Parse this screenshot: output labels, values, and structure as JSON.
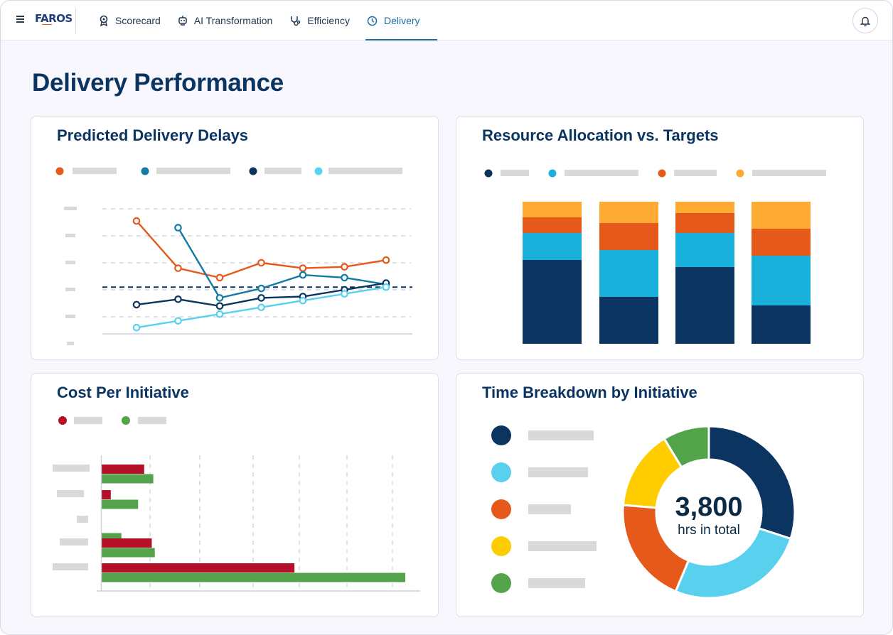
{
  "brand": {
    "name": "FAROS"
  },
  "nav": {
    "items": [
      {
        "label": "Scorecard",
        "icon": "award-icon",
        "active": false
      },
      {
        "label": "AI Transformation",
        "icon": "robot-icon",
        "active": false
      },
      {
        "label": "Efficiency",
        "icon": "stethoscope-icon",
        "active": false
      },
      {
        "label": "Delivery",
        "icon": "clock-icon",
        "active": true
      }
    ]
  },
  "page": {
    "title": "Delivery Performance"
  },
  "colors": {
    "orange": "#e55a1b",
    "teal": "#137aa6",
    "light_blue": "#5ad0ef",
    "navy": "#0b3560",
    "bar_sky": "#1ab0dc",
    "bar_amber": "#ffaa33",
    "red": "#b5102a",
    "green": "#52a34a",
    "yellow": "#ffcc00",
    "placeholder": "#d9d9d9"
  },
  "chart_data": [
    {
      "type": "line",
      "title": "Predicted Delivery Delays",
      "x": [
        1,
        2,
        3,
        4,
        5,
        6,
        7
      ],
      "ylim": [
        0,
        5
      ],
      "reference_line": 2.1,
      "grid": true,
      "legend_position": "top",
      "series": [
        {
          "color": "orange",
          "x": [
            1,
            2,
            3,
            4,
            5,
            6,
            7
          ],
          "values": [
            4.55,
            2.8,
            2.45,
            3.0,
            2.8,
            2.85,
            3.1
          ]
        },
        {
          "color": "teal",
          "x": [
            2,
            3,
            4,
            5,
            6,
            7
          ],
          "values": [
            4.3,
            1.7,
            2.05,
            2.55,
            2.45,
            2.2
          ]
        },
        {
          "color": "navy",
          "x": [
            1,
            2,
            3,
            4,
            5,
            6,
            7
          ],
          "values": [
            1.45,
            1.65,
            1.4,
            1.7,
            1.75,
            2.0,
            2.25
          ]
        },
        {
          "color": "light_blue",
          "x": [
            1,
            2,
            3,
            4,
            5,
            6,
            7
          ],
          "values": [
            0.6,
            0.85,
            1.1,
            1.35,
            1.6,
            1.85,
            2.1
          ]
        }
      ]
    },
    {
      "type": "bar",
      "stacked": true,
      "title": "Resource Allocation vs. Targets",
      "ylim": [
        0,
        100
      ],
      "legend_position": "top",
      "series": [
        {
          "color": "navy",
          "values": [
            59,
            33,
            54,
            27
          ]
        },
        {
          "color": "bar_sky",
          "values": [
            19,
            33,
            24,
            35
          ]
        },
        {
          "color": "orange",
          "values": [
            11,
            19,
            14,
            19
          ]
        },
        {
          "color": "bar_amber",
          "values": [
            11,
            15,
            8,
            19
          ]
        }
      ]
    },
    {
      "type": "bar",
      "orientation": "horizontal",
      "title": "Cost Per Initiative",
      "xlim": [
        0,
        100
      ],
      "legend_position": "top-left",
      "series": [
        {
          "color": "red",
          "values": [
            14,
            3,
            0,
            16.5,
            63.5
          ]
        },
        {
          "color": "green",
          "values": [
            17,
            12,
            6.5,
            17.5,
            100
          ]
        }
      ]
    },
    {
      "type": "pie",
      "title": "Time Breakdown by Initiative",
      "center_value": "3,800",
      "center_label": "hrs in total",
      "legend_position": "left",
      "slices": [
        {
          "color": "navy",
          "value": 1140
        },
        {
          "color": "light_blue",
          "value": 1000
        },
        {
          "color": "orange",
          "value": 760
        },
        {
          "color": "yellow",
          "value": 570
        },
        {
          "color": "green",
          "value": 330
        }
      ]
    }
  ]
}
